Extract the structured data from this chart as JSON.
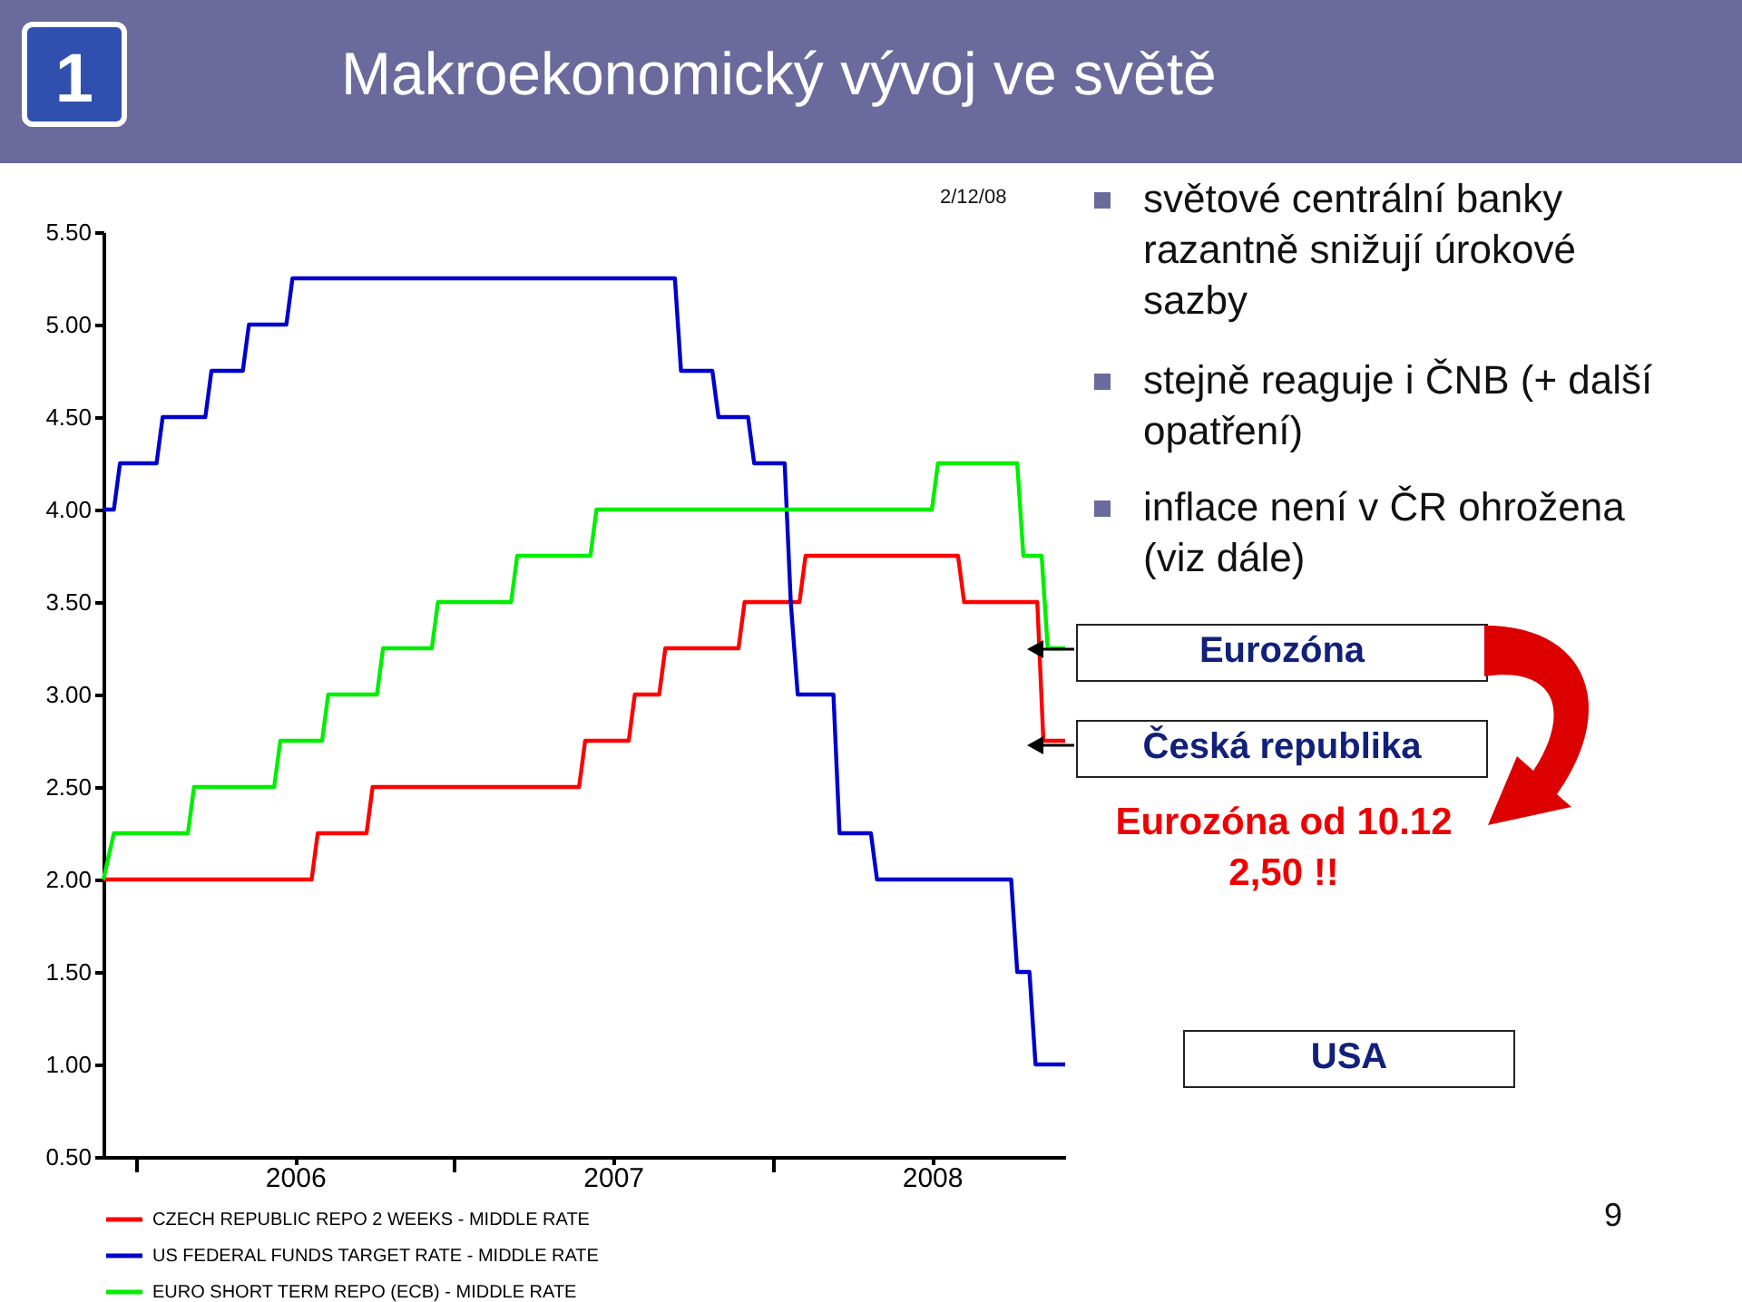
{
  "chart_data": {
    "type": "line",
    "title": "Makroekonomický vývoj ve světě",
    "series": [
      {
        "name": "CZECH REPUBLIC REPO 2 WEEKS - MIDDLE RATE",
        "color": "#ff0000",
        "x": [
          "2005-11-24",
          "2006-07-21",
          "2006-07-28",
          "2006-09-22",
          "2006-09-29",
          "2007-05-24",
          "2007-05-31",
          "2007-07-20",
          "2007-07-27",
          "2007-08-24",
          "2007-08-31",
          "2007-11-23",
          "2007-11-30",
          "2008-02-01",
          "2008-02-08",
          "2008-08-01",
          "2008-08-08",
          "2008-10-31",
          "2008-11-07",
          "2008-12-02"
        ],
        "values": [
          2.0,
          2.0,
          2.25,
          2.25,
          2.5,
          2.5,
          2.75,
          2.75,
          3.0,
          3.0,
          3.25,
          3.25,
          3.5,
          3.5,
          3.75,
          3.75,
          3.5,
          3.5,
          2.75,
          2.75
        ]
      },
      {
        "name": "US FEDERAL FUNDS TARGET RATE - MIDDLE RATE",
        "color": "#0000cc",
        "x": [
          "2005-11-24",
          "2005-12-06",
          "2005-12-13",
          "2006-01-24",
          "2006-01-31",
          "2006-03-21",
          "2006-03-28",
          "2006-05-03",
          "2006-05-10",
          "2006-06-22",
          "2006-06-29",
          "2007-09-11",
          "2007-09-18",
          "2007-10-24",
          "2007-10-31",
          "2007-12-04",
          "2007-12-11",
          "2008-01-15",
          "2008-01-22",
          "2008-01-30",
          "2008-03-11",
          "2008-03-18",
          "2008-04-23",
          "2008-04-30",
          "2008-10-01",
          "2008-10-08",
          "2008-10-22",
          "2008-10-29",
          "2008-12-02"
        ],
        "values": [
          4.0,
          4.0,
          4.25,
          4.25,
          4.5,
          4.5,
          4.75,
          4.75,
          5.0,
          5.0,
          5.25,
          5.25,
          4.75,
          4.75,
          4.5,
          4.5,
          4.25,
          4.25,
          3.5,
          3.0,
          3.0,
          2.25,
          2.25,
          2.0,
          2.0,
          1.5,
          1.5,
          1.0,
          1.0
        ]
      },
      {
        "name": "EURO SHORT TERM REPO (ECB) - MIDDLE RATE",
        "color": "#00ee00",
        "x": [
          "2005-11-24",
          "2005-12-06",
          "2006-03-01",
          "2006-03-08",
          "2006-06-08",
          "2006-06-15",
          "2006-08-02",
          "2006-08-09",
          "2006-10-04",
          "2006-10-11",
          "2006-12-06",
          "2006-12-13",
          "2007-03-07",
          "2007-03-14",
          "2007-06-06",
          "2007-06-13",
          "2008-07-02",
          "2008-07-09",
          "2008-10-08",
          "2008-10-15",
          "2008-11-05",
          "2008-11-12",
          "2008-12-02"
        ],
        "values": [
          2.0,
          2.25,
          2.25,
          2.5,
          2.5,
          2.75,
          2.75,
          3.0,
          3.0,
          3.25,
          3.25,
          3.5,
          3.5,
          3.75,
          3.75,
          4.0,
          4.0,
          4.25,
          4.25,
          3.75,
          3.75,
          3.25,
          3.25
        ]
      }
    ],
    "xlim": [
      "2005-11-24",
      "2008-12-02"
    ],
    "xticks": [
      {
        "value": "2006-01-01",
        "label": null
      },
      {
        "value": "2006-07-02",
        "label": "2006"
      },
      {
        "value": "2007-01-01",
        "label": null
      },
      {
        "value": "2007-07-02",
        "label": "2007"
      },
      {
        "value": "2008-01-01",
        "label": null
      },
      {
        "value": "2008-07-02",
        "label": "2008"
      }
    ],
    "ylim": [
      0.5,
      5.5
    ],
    "yticks": [
      {
        "value": 0.5,
        "label": "0.50"
      },
      {
        "value": 1.0,
        "label": "1.00"
      },
      {
        "value": 1.5,
        "label": "1.50"
      },
      {
        "value": 2.0,
        "label": "2.00"
      },
      {
        "value": 2.5,
        "label": "2.50"
      },
      {
        "value": 3.0,
        "label": "3.00"
      },
      {
        "value": 3.5,
        "label": "3.50"
      },
      {
        "value": 4.0,
        "label": "4.00"
      },
      {
        "value": 4.5,
        "label": "4.50"
      },
      {
        "value": 5.0,
        "label": "5.00"
      },
      {
        "value": 5.5,
        "label": "5.50"
      }
    ],
    "legend": "bottom left",
    "line_style": "solid",
    "annotations": [
      "2/12/08",
      "světové centrální banky razantně snižují úrokové sazby",
      "stejně reaguje i ČNB (+ další opatření)",
      "inflace není v ČR ohrožena (viz dále)",
      "Eurozóna",
      "Česká republika",
      "Eurozóna od 10.12 2,50 !!",
      "USA",
      "9",
      "1"
    ]
  }
}
